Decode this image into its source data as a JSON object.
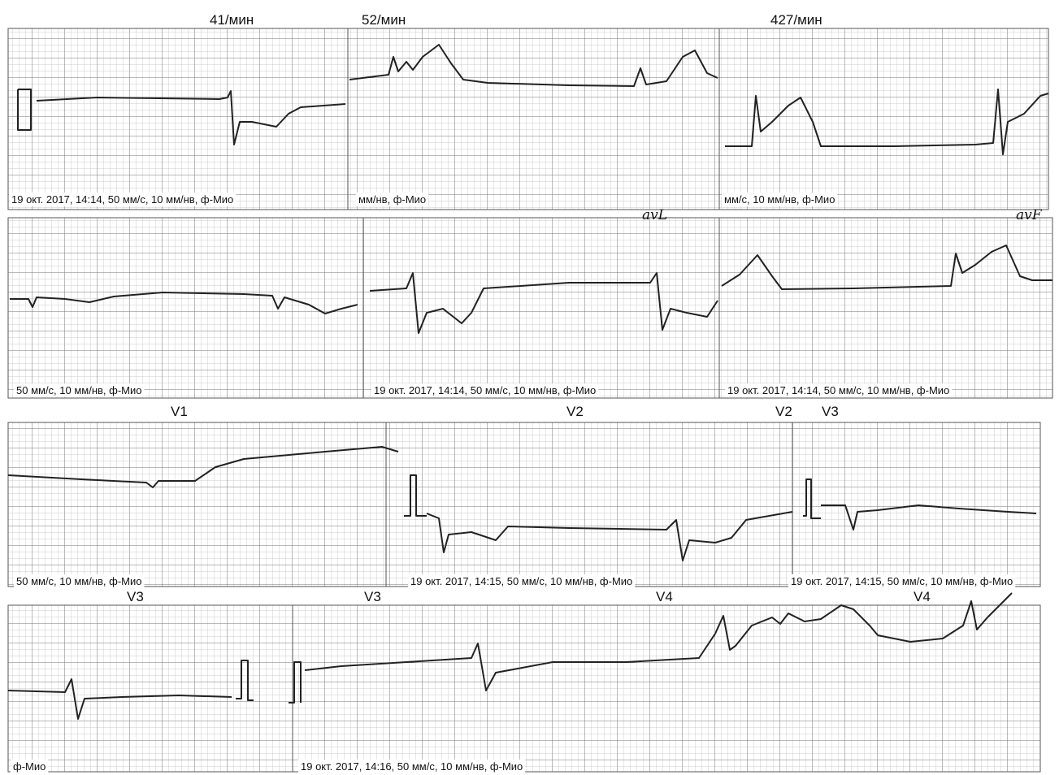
{
  "strips": [
    {
      "labels": [
        "41/мин",
        "52/мин",
        "427/мин"
      ],
      "captions": [
        "19 окт. 2017, 14:14, 50 мм/с, 10 мм/нв, ф-Мио",
        "мм/нв, ф-Мио",
        "мм/с, 10 мм/нв, ф-Мио"
      ]
    },
    {
      "labels": [
        "avL",
        "avF"
      ],
      "captions": [
        "50 мм/с, 10 мм/нв, ф-Мио",
        "19 окт. 2017, 14:14, 50 мм/с, 10 мм/нв, ф-Мио",
        "19 окт. 2017, 14:14, 50 мм/с, 10 мм/нв, ф-Мио"
      ]
    },
    {
      "labels": [
        "V1",
        "V2",
        "V2",
        "V3"
      ],
      "captions": [
        "50 мм/с, 10 мм/нв, ф-Мио",
        "19 окт. 2017, 14:15, 50 мм/с, 10 мм/нв, ф-Мио",
        "19 окт. 2017, 14:15, 50 мм/с, 10 мм/нв, ф-Мио"
      ]
    },
    {
      "labels": [
        "V3",
        "V3",
        "V4",
        "V4"
      ],
      "captions": [
        "ф-Мио",
        "19 окт. 2017, 14:16, 50 мм/с, 10 мм/нв, ф-Мио"
      ]
    }
  ]
}
